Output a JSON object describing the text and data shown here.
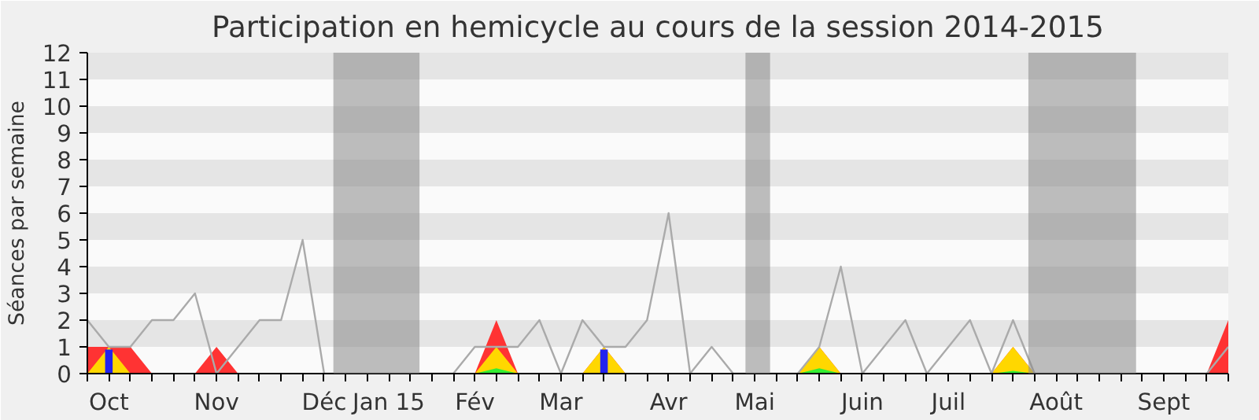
{
  "chart_data": {
    "type": "area",
    "title": "Participation en hemicycle au cours de la session 2014-2015",
    "ylabel": "Séances par semaine",
    "xlim": [
      "2014-09-29",
      "2015-10-05"
    ],
    "ylim": [
      0,
      12
    ],
    "yticks": [
      0,
      1,
      2,
      3,
      4,
      5,
      6,
      7,
      8,
      9,
      10,
      11,
      12
    ],
    "xticks": [
      {
        "value": "2014-09-29",
        "label": null
      },
      {
        "value": "2014-10-06",
        "label": "Oct"
      },
      {
        "value": "2014-10-13",
        "label": null
      },
      {
        "value": "2014-10-20",
        "label": null
      },
      {
        "value": "2014-10-27",
        "label": null
      },
      {
        "value": "2014-11-03",
        "label": null
      },
      {
        "value": "2014-11-10",
        "label": "Nov"
      },
      {
        "value": "2014-11-17",
        "label": null
      },
      {
        "value": "2014-11-24",
        "label": null
      },
      {
        "value": "2014-12-01",
        "label": null
      },
      {
        "value": "2014-12-08",
        "label": null
      },
      {
        "value": "2014-12-15",
        "label": "Déc"
      },
      {
        "value": "2014-12-22",
        "label": null
      },
      {
        "value": "2014-12-29",
        "label": null
      },
      {
        "value": "2015-01-05",
        "label": "Jan 15"
      },
      {
        "value": "2015-01-12",
        "label": null
      },
      {
        "value": "2015-01-19",
        "label": null
      },
      {
        "value": "2015-01-26",
        "label": null
      },
      {
        "value": "2015-02-02",
        "label": "Fév"
      },
      {
        "value": "2015-02-09",
        "label": null
      },
      {
        "value": "2015-02-16",
        "label": null
      },
      {
        "value": "2015-02-23",
        "label": null
      },
      {
        "value": "2015-03-02",
        "label": "Mar"
      },
      {
        "value": "2015-03-09",
        "label": null
      },
      {
        "value": "2015-03-16",
        "label": null
      },
      {
        "value": "2015-03-23",
        "label": null
      },
      {
        "value": "2015-03-30",
        "label": null
      },
      {
        "value": "2015-04-06",
        "label": "Avr"
      },
      {
        "value": "2015-04-13",
        "label": null
      },
      {
        "value": "2015-04-20",
        "label": null
      },
      {
        "value": "2015-04-27",
        "label": null
      },
      {
        "value": "2015-05-04",
        "label": "Mai"
      },
      {
        "value": "2015-05-11",
        "label": null
      },
      {
        "value": "2015-05-18",
        "label": null
      },
      {
        "value": "2015-05-25",
        "label": null
      },
      {
        "value": "2015-06-01",
        "label": null
      },
      {
        "value": "2015-06-08",
        "label": "Juin"
      },
      {
        "value": "2015-06-15",
        "label": null
      },
      {
        "value": "2015-06-22",
        "label": null
      },
      {
        "value": "2015-06-29",
        "label": null
      },
      {
        "value": "2015-07-06",
        "label": "Juil"
      },
      {
        "value": "2015-07-13",
        "label": null
      },
      {
        "value": "2015-07-20",
        "label": null
      },
      {
        "value": "2015-07-27",
        "label": null
      },
      {
        "value": "2015-08-03",
        "label": null
      },
      {
        "value": "2015-08-10",
        "label": "Août"
      },
      {
        "value": "2015-08-17",
        "label": null
      },
      {
        "value": "2015-08-24",
        "label": null
      },
      {
        "value": "2015-08-31",
        "label": null
      },
      {
        "value": "2015-09-07",
        "label": null
      },
      {
        "value": "2015-09-14",
        "label": "Sept"
      },
      {
        "value": "2015-09-21",
        "label": null
      },
      {
        "value": "2015-09-28",
        "label": null
      },
      {
        "value": "2015-10-05",
        "label": null
      }
    ],
    "x": [
      "2014-09-29",
      "2014-10-06",
      "2014-10-13",
      "2014-10-20",
      "2014-10-27",
      "2014-11-03",
      "2014-11-10",
      "2014-11-17",
      "2014-11-24",
      "2014-12-01",
      "2014-12-08",
      "2014-12-15",
      "2014-12-22",
      "2014-12-29",
      "2015-01-05",
      "2015-01-12",
      "2015-01-19",
      "2015-01-26",
      "2015-02-02",
      "2015-02-09",
      "2015-02-16",
      "2015-02-23",
      "2015-03-02",
      "2015-03-09",
      "2015-03-16",
      "2015-03-23",
      "2015-03-30",
      "2015-04-06",
      "2015-04-13",
      "2015-04-20",
      "2015-04-27",
      "2015-05-04",
      "2015-05-11",
      "2015-05-18",
      "2015-05-25",
      "2015-06-01",
      "2015-06-08",
      "2015-06-15",
      "2015-06-22",
      "2015-06-29",
      "2015-07-06",
      "2015-07-13",
      "2015-07-20",
      "2015-07-27",
      "2015-08-03",
      "2015-08-10",
      "2015-08-17",
      "2015-08-24",
      "2015-08-31",
      "2015-09-07",
      "2015-09-14",
      "2015-09-21",
      "2015-09-28",
      "2015-10-05"
    ],
    "bands": [
      {
        "axis": "x",
        "from": "2014-12-18",
        "to": "2015-01-15",
        "color": "#888888"
      },
      {
        "axis": "x",
        "from": "2015-05-01",
        "to": "2015-05-09",
        "color": "#888888"
      },
      {
        "axis": "x",
        "from": "2015-08-01",
        "to": "2015-09-05",
        "color": "#888888"
      }
    ],
    "series": [
      {
        "color": "#ff3333",
        "values": [
          1,
          1,
          1,
          0,
          0,
          0,
          1,
          0,
          0,
          0,
          0,
          0,
          0,
          0,
          0,
          0,
          0,
          0,
          0,
          2,
          0,
          0,
          0,
          0,
          1,
          0,
          0,
          0,
          0,
          0,
          0,
          0,
          0,
          0,
          1,
          0,
          0,
          0,
          0,
          0,
          0,
          0,
          0,
          1,
          0,
          0,
          0,
          0,
          0,
          0,
          0,
          0,
          0,
          2
        ]
      },
      {
        "color": "#ffd700",
        "values": [
          0,
          1,
          0,
          0,
          0,
          0,
          0,
          0,
          0,
          0,
          0,
          0,
          0,
          0,
          0,
          0,
          0,
          0,
          0,
          1,
          0,
          0,
          0,
          0,
          1,
          0,
          0,
          0,
          0,
          0,
          0,
          0,
          0,
          0,
          1,
          0,
          0,
          0,
          0,
          0,
          0,
          0,
          0,
          1,
          0,
          0,
          0,
          0,
          0,
          0,
          0,
          0,
          0,
          0
        ]
      },
      {
        "color": "#33ee33",
        "values": [
          0,
          0,
          0,
          0,
          0,
          0,
          0,
          0,
          0,
          0,
          0,
          0,
          0,
          0,
          0,
          0,
          0,
          0,
          0,
          0.2,
          0,
          0,
          0,
          0,
          0,
          0,
          0,
          0,
          0,
          0,
          0,
          0,
          0,
          0,
          0.2,
          0,
          0,
          0,
          0,
          0,
          0,
          0,
          0,
          0.1,
          0,
          0,
          0,
          0,
          0,
          0,
          0,
          0,
          0,
          0
        ]
      },
      {
        "type": "bar",
        "color": "#2222ee",
        "values": [
          null,
          0.9,
          null,
          null,
          null,
          null,
          null,
          null,
          null,
          null,
          null,
          null,
          null,
          null,
          null,
          null,
          null,
          null,
          null,
          null,
          null,
          null,
          null,
          null,
          0.9,
          null,
          null,
          null,
          null,
          null,
          null,
          null,
          null,
          null,
          null,
          null,
          null,
          null,
          null,
          null,
          null,
          null,
          null,
          null,
          null,
          null,
          null,
          null,
          null,
          null,
          null,
          null,
          null,
          null
        ]
      },
      {
        "type": "line",
        "color": "#aaaaaa",
        "values": [
          2,
          1,
          1,
          2,
          2,
          3,
          0,
          1,
          2,
          2,
          5,
          0,
          0,
          0,
          0,
          0,
          0,
          0,
          1,
          1,
          1,
          2,
          0,
          2,
          1,
          1,
          2,
          6,
          0,
          1,
          0,
          0,
          0,
          0,
          1,
          4,
          0,
          1,
          2,
          0,
          1,
          2,
          0,
          2,
          0,
          0,
          0,
          0,
          0,
          0,
          0,
          0,
          0,
          1
        ]
      }
    ]
  }
}
